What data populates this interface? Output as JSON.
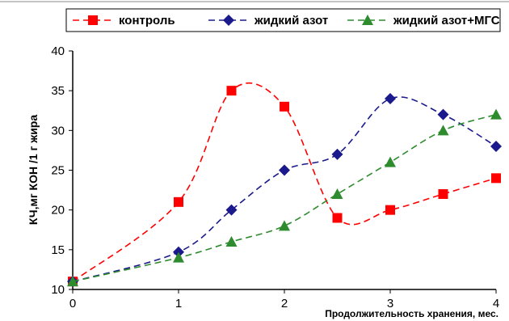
{
  "chart_data": {
    "type": "line",
    "title": "",
    "xlabel": "Продолжительность хранения, мес.",
    "ylabel": "КЧ,мг КОН /1 г жира",
    "xlim": [
      0,
      4
    ],
    "ylim": [
      10,
      40
    ],
    "x_ticks": [
      "0",
      "1",
      "2",
      "3",
      "4"
    ],
    "y_ticks": [
      "10",
      "15",
      "20",
      "25",
      "30",
      "35",
      "40"
    ],
    "grid": false,
    "legend_position": "top",
    "series": [
      {
        "name": "контроль",
        "color": "#ff0000",
        "marker": "square",
        "x": [
          0,
          1,
          1.5,
          2,
          2.5,
          3,
          3.5,
          4
        ],
        "y": [
          11,
          21,
          35,
          33,
          19,
          20,
          22,
          24
        ]
      },
      {
        "name": "жидкий азот",
        "color": "#1a1a8c",
        "marker": "diamond",
        "x": [
          0,
          1,
          1.5,
          2,
          2.5,
          3,
          3.5,
          4
        ],
        "y": [
          11,
          14.7,
          20,
          25,
          27,
          34,
          32,
          28
        ]
      },
      {
        "name": "жидкий азот+МГС",
        "color": "#2e8b2e",
        "marker": "triangle",
        "x": [
          0,
          1,
          1.5,
          2,
          2.5,
          3,
          3.5,
          4
        ],
        "y": [
          11,
          14,
          16,
          18,
          22,
          26,
          30,
          32
        ]
      }
    ]
  }
}
